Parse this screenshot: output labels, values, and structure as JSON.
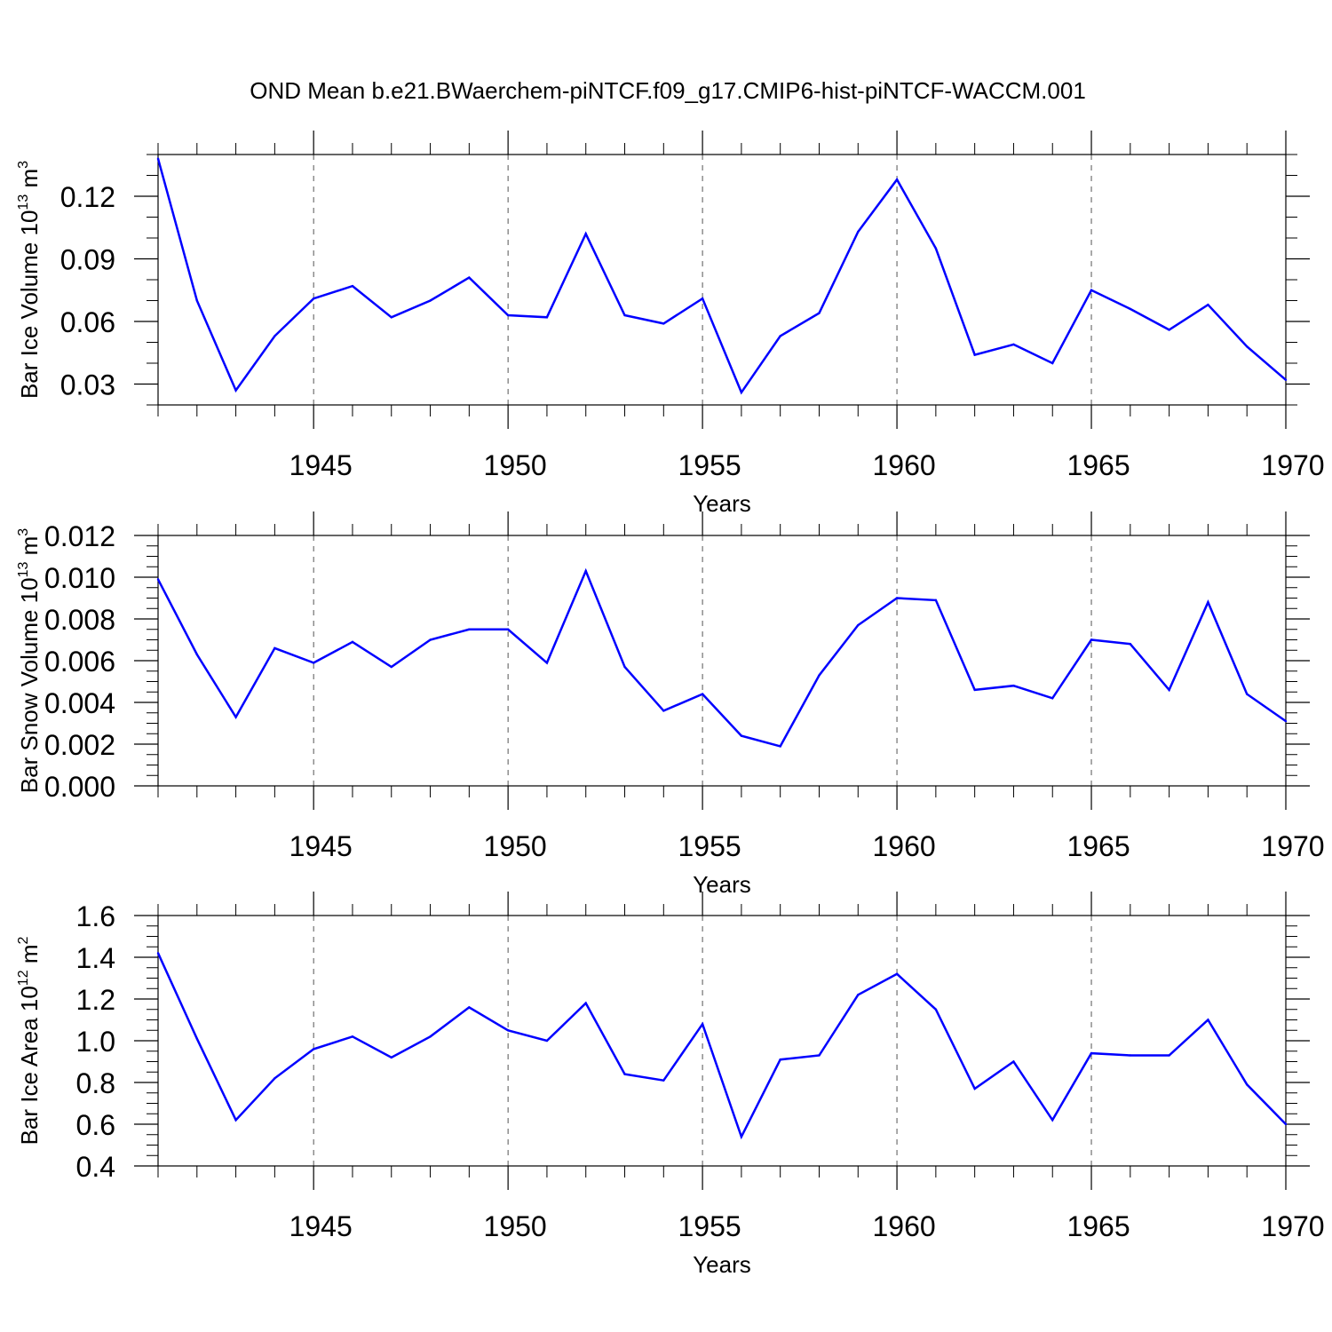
{
  "title": "OND Mean b.e21.BWaerchem-piNTCF.f09_g17.CMIP6-hist-piNTCF-WACCM.001",
  "colors": {
    "line": "#0000ff",
    "axis": "#000000",
    "grid": "#555555",
    "background": "#ffffff"
  },
  "chart_data": [
    {
      "type": "line",
      "id": "ice-volume",
      "ylabel": "Bar Ice Volume 10",
      "ylabel_sup": "13",
      "ylabel_unit": "m",
      "ylabel_unit_sup": "3",
      "xlabel": "Years",
      "xlim": [
        1941,
        1970
      ],
      "ylim": [
        0.02,
        0.14
      ],
      "y_major_ticks": [
        0.03,
        0.06,
        0.09,
        0.12
      ],
      "y_tick_labels": [
        "0.03",
        "0.06",
        "0.09",
        "0.12"
      ],
      "y_minor_step": 0.01,
      "x_major_ticks": [
        1945,
        1950,
        1955,
        1960,
        1965,
        1970
      ],
      "x_tick_labels": [
        "1945",
        "1950",
        "1955",
        "1960",
        "1965",
        "1970"
      ],
      "grid": "vertical dashed at major x ticks",
      "x": [
        1941,
        1942,
        1943,
        1944,
        1945,
        1946,
        1947,
        1948,
        1949,
        1950,
        1951,
        1952,
        1953,
        1954,
        1955,
        1956,
        1957,
        1958,
        1959,
        1960,
        1961,
        1962,
        1963,
        1964,
        1965,
        1966,
        1967,
        1968,
        1969,
        1970
      ],
      "values": [
        0.138,
        0.07,
        0.027,
        0.053,
        0.071,
        0.077,
        0.062,
        0.07,
        0.081,
        0.063,
        0.062,
        0.102,
        0.063,
        0.059,
        0.071,
        0.026,
        0.053,
        0.064,
        0.103,
        0.128,
        0.095,
        0.044,
        0.049,
        0.04,
        0.075,
        0.066,
        0.056,
        0.068,
        0.048,
        0.032
      ]
    },
    {
      "type": "line",
      "id": "snow-volume",
      "ylabel": "Bar Snow Volume 10",
      "ylabel_sup": "13",
      "ylabel_unit": "m",
      "ylabel_unit_sup": "3",
      "xlabel": "Years",
      "xlim": [
        1941,
        1970
      ],
      "ylim": [
        0.0,
        0.012
      ],
      "y_major_ticks": [
        0.0,
        0.002,
        0.004,
        0.006,
        0.008,
        0.01,
        0.012
      ],
      "y_tick_labels": [
        "0.000",
        "0.002",
        "0.004",
        "0.006",
        "0.008",
        "0.010",
        "0.012"
      ],
      "y_minor_step": 0.0005,
      "x_major_ticks": [
        1945,
        1950,
        1955,
        1960,
        1965,
        1970
      ],
      "x_tick_labels": [
        "1945",
        "1950",
        "1955",
        "1960",
        "1965",
        "1970"
      ],
      "grid": "vertical dashed at major x ticks",
      "x": [
        1941,
        1942,
        1943,
        1944,
        1945,
        1946,
        1947,
        1948,
        1949,
        1950,
        1951,
        1952,
        1953,
        1954,
        1955,
        1956,
        1957,
        1958,
        1959,
        1960,
        1961,
        1962,
        1963,
        1964,
        1965,
        1966,
        1967,
        1968,
        1969,
        1970
      ],
      "values": [
        0.0099,
        0.0063,
        0.0033,
        0.0066,
        0.0059,
        0.0069,
        0.0057,
        0.007,
        0.0075,
        0.0075,
        0.0059,
        0.0103,
        0.0057,
        0.0036,
        0.0044,
        0.0024,
        0.0019,
        0.0053,
        0.0077,
        0.009,
        0.0089,
        0.0046,
        0.0048,
        0.0042,
        0.007,
        0.0068,
        0.0046,
        0.0088,
        0.0044,
        0.0031
      ]
    },
    {
      "type": "line",
      "id": "ice-area",
      "ylabel": "Bar Ice Area 10",
      "ylabel_sup": "12",
      "ylabel_unit": "m",
      "ylabel_unit_sup": "2",
      "xlabel": "Years",
      "xlim": [
        1941,
        1970
      ],
      "ylim": [
        0.4,
        1.6
      ],
      "y_major_ticks": [
        0.4,
        0.6,
        0.8,
        1.0,
        1.2,
        1.4,
        1.6
      ],
      "y_tick_labels": [
        "0.4",
        "0.6",
        "0.8",
        "1.0",
        "1.2",
        "1.4",
        "1.6"
      ],
      "y_minor_step": 0.05,
      "x_major_ticks": [
        1945,
        1950,
        1955,
        1960,
        1965,
        1970
      ],
      "x_tick_labels": [
        "1945",
        "1950",
        "1955",
        "1960",
        "1965",
        "1970"
      ],
      "grid": "vertical dashed at major x ticks",
      "x": [
        1941,
        1942,
        1943,
        1944,
        1945,
        1946,
        1947,
        1948,
        1949,
        1950,
        1951,
        1952,
        1953,
        1954,
        1955,
        1956,
        1957,
        1958,
        1959,
        1960,
        1961,
        1962,
        1963,
        1964,
        1965,
        1966,
        1967,
        1968,
        1969,
        1970
      ],
      "values": [
        1.42,
        1.01,
        0.62,
        0.82,
        0.96,
        1.02,
        0.92,
        1.02,
        1.16,
        1.05,
        1.0,
        1.18,
        0.84,
        0.81,
        1.08,
        0.54,
        0.91,
        0.93,
        1.22,
        1.32,
        1.15,
        0.77,
        0.9,
        0.62,
        0.94,
        0.93,
        0.93,
        1.1,
        0.79,
        0.6
      ]
    }
  ]
}
